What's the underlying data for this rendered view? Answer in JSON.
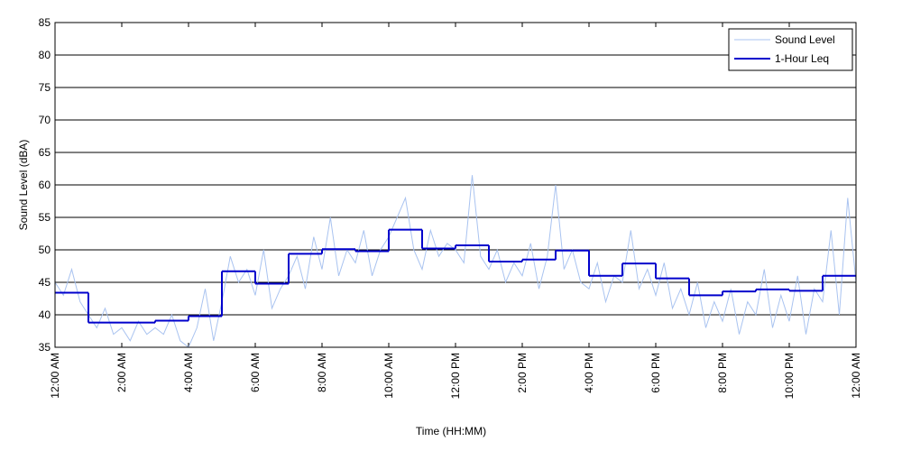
{
  "chart_data": {
    "type": "line",
    "xlabel": "Time (HH:MM)",
    "ylabel": "Sound Level (dBA)",
    "xlim": [
      0,
      24
    ],
    "ylim": [
      35,
      85
    ],
    "xticks": [
      {
        "value": 0,
        "label": "12:00 AM"
      },
      {
        "value": 2,
        "label": "2:00 AM"
      },
      {
        "value": 4,
        "label": "4:00 AM"
      },
      {
        "value": 6,
        "label": "6:00 AM"
      },
      {
        "value": 8,
        "label": "8:00 AM"
      },
      {
        "value": 10,
        "label": "10:00 AM"
      },
      {
        "value": 12,
        "label": "12:00 PM"
      },
      {
        "value": 14,
        "label": "2:00 PM"
      },
      {
        "value": 16,
        "label": "4:00 PM"
      },
      {
        "value": 18,
        "label": "6:00 PM"
      },
      {
        "value": 20,
        "label": "8:00 PM"
      },
      {
        "value": 22,
        "label": "10:00 PM"
      },
      {
        "value": 24,
        "label": "12:00 AM"
      }
    ],
    "yticks": [
      35,
      40,
      45,
      50,
      55,
      60,
      65,
      70,
      75,
      80,
      85
    ],
    "grid": true,
    "legend": "upper right",
    "series": [
      {
        "name": "Sound Level",
        "color": "#a9c3f0",
        "step": false,
        "x": [
          0,
          0.25,
          0.5,
          0.75,
          1,
          1.25,
          1.5,
          1.75,
          2,
          2.25,
          2.5,
          2.75,
          3,
          3.25,
          3.5,
          3.75,
          4,
          4.25,
          4.5,
          4.75,
          5,
          5.25,
          5.5,
          5.75,
          6,
          6.25,
          6.5,
          6.75,
          7,
          7.25,
          7.5,
          7.75,
          8,
          8.25,
          8.5,
          8.75,
          9,
          9.25,
          9.5,
          9.75,
          10,
          10.25,
          10.5,
          10.75,
          11,
          11.25,
          11.5,
          11.75,
          12,
          12.25,
          12.5,
          12.75,
          13,
          13.25,
          13.5,
          13.75,
          14,
          14.25,
          14.5,
          14.75,
          15,
          15.25,
          15.5,
          15.75,
          16,
          16.25,
          16.5,
          16.75,
          17,
          17.25,
          17.5,
          17.75,
          18,
          18.25,
          18.5,
          18.75,
          19,
          19.25,
          19.5,
          19.75,
          20,
          20.25,
          20.5,
          20.75,
          21,
          21.25,
          21.5,
          21.75,
          22,
          22.25,
          22.5,
          22.75,
          23,
          23.25,
          23.5,
          23.75,
          24
        ],
        "values": [
          45,
          43,
          47,
          42,
          40,
          38,
          41,
          37,
          38,
          36,
          39,
          37,
          38,
          37,
          40,
          36,
          35,
          38,
          44,
          36,
          42,
          49,
          45,
          47,
          43,
          50,
          41,
          44,
          46,
          49,
          44,
          52,
          47,
          55,
          46,
          50,
          48,
          53,
          46,
          50,
          52,
          55,
          58,
          50,
          47,
          53,
          49,
          51,
          50,
          48,
          61.5,
          49,
          47,
          50,
          45,
          48,
          46,
          51,
          44,
          49,
          60,
          47,
          50,
          45,
          44,
          48,
          42,
          46,
          45,
          53,
          44,
          47,
          43,
          48,
          41,
          44,
          40,
          45,
          38,
          42,
          39,
          44,
          37,
          42,
          40,
          47,
          38,
          43,
          39,
          46,
          37,
          44,
          42,
          53,
          40,
          58,
          45
        ]
      },
      {
        "name": "1-Hour Leq",
        "color": "#0000cc",
        "step": true,
        "x": [
          0,
          1,
          2,
          3,
          4,
          5,
          6,
          7,
          8,
          9,
          10,
          11,
          12,
          13,
          14,
          15,
          16,
          17,
          18,
          19,
          20,
          21,
          22,
          23
        ],
        "values": [
          43.4,
          38.8,
          38.8,
          39.1,
          39.8,
          46.7,
          44.8,
          49.4,
          50.1,
          49.8,
          53.1,
          50.2,
          50.7,
          48.2,
          48.5,
          49.9,
          46.0,
          47.9,
          45.6,
          43.0,
          43.6,
          43.9,
          43.7,
          46.0
        ]
      }
    ]
  }
}
